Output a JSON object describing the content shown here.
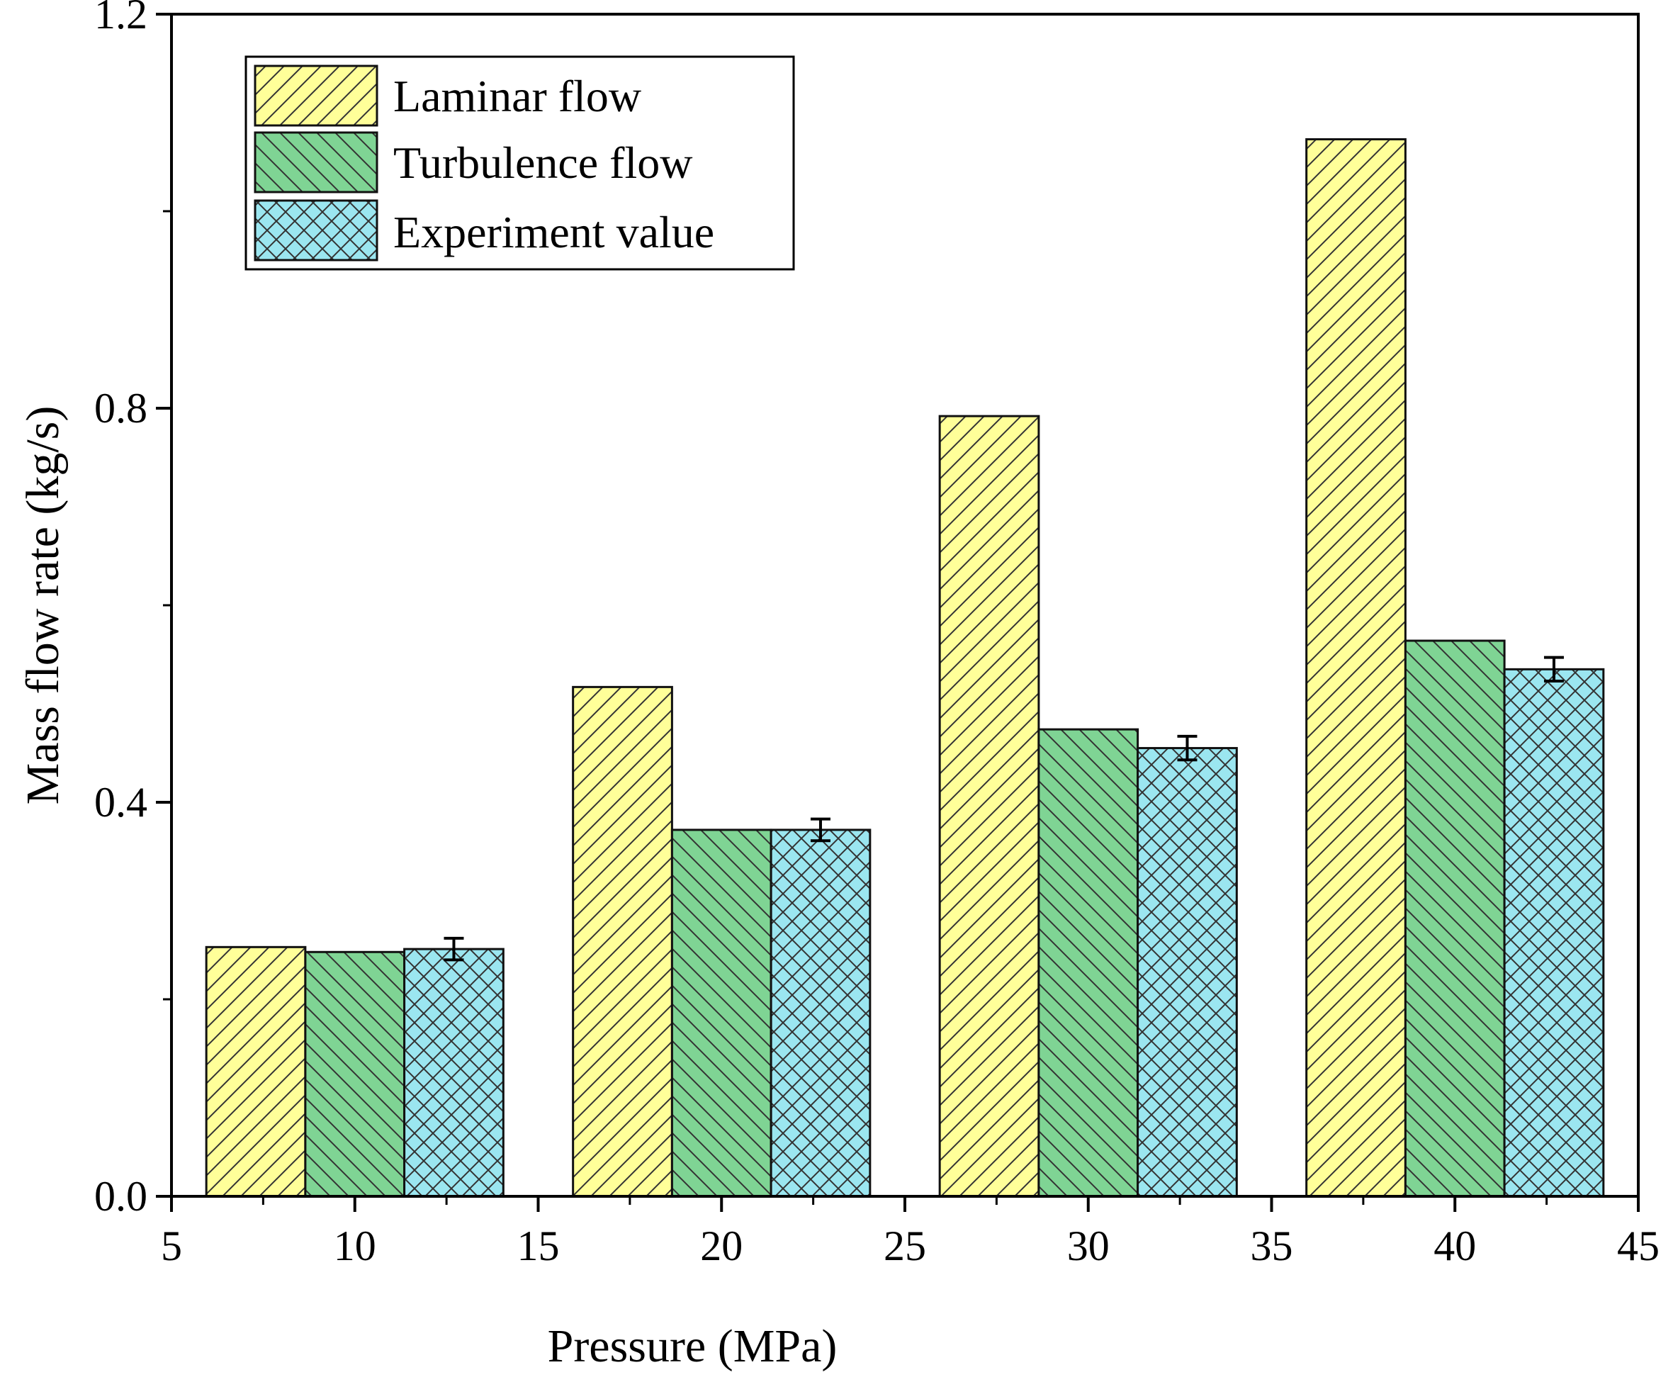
{
  "chart_data": {
    "type": "bar",
    "xlabel": "Pressure (MPa)",
    "ylabel": "Mass flow rate (kg/s)",
    "xlim": [
      5,
      45
    ],
    "ylim": [
      0,
      1.2
    ],
    "x_ticks": [
      5,
      10,
      15,
      20,
      25,
      30,
      35,
      40,
      45
    ],
    "x_tick_labels": [
      "5",
      "10",
      "15",
      "20",
      "25",
      "30",
      "35",
      "40",
      "45"
    ],
    "y_ticks": [
      0.0,
      0.4,
      0.8,
      1.2
    ],
    "y_tick_labels": [
      "0.0",
      "0.4",
      "0.8",
      "1.2"
    ],
    "y_minor_ticks": [
      0.2,
      0.6,
      1.0
    ],
    "group_centers": [
      10,
      20,
      30,
      40
    ],
    "legend_position": "top-left",
    "series": [
      {
        "name": "Laminar flow",
        "values": [
          0.253,
          0.517,
          0.792,
          1.073
        ],
        "color": "#ffff99",
        "pattern": "forward-diagonal"
      },
      {
        "name": "Turbulence flow",
        "values": [
          0.248,
          0.372,
          0.474,
          0.564
        ],
        "color": "#7fd494",
        "pattern": "back-diagonal"
      },
      {
        "name": "Experiment value",
        "values": [
          0.251,
          0.372,
          0.455,
          0.535
        ],
        "errors": [
          0.011,
          0.011,
          0.012,
          0.012
        ],
        "color": "#9be6f0",
        "pattern": "crosshatch"
      }
    ]
  }
}
